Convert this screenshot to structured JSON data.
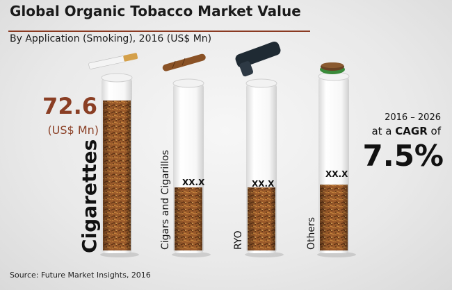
{
  "header": {
    "title": "Global Organic Tobacco Market Value",
    "subtitle": "By Application (Smoking), 2016 (US$ Mn)"
  },
  "footer": {
    "source": "Source: Future Market Insights, 2016"
  },
  "highlight": {
    "value": "72.6",
    "unit": "(US$ Mn)"
  },
  "cagr": {
    "years": "2016 – 2026",
    "prefix": "at a ",
    "keyword": "CAGR",
    "suffix": " of",
    "value": "7.5%"
  },
  "chart_data": {
    "type": "bar",
    "title": "Global Organic Tobacco Market Value",
    "subtitle": "By Application (Smoking), 2016 (US$ Mn)",
    "categories": [
      "Cigarettes",
      "Cigars and Cigarillos",
      "RYO",
      "Others"
    ],
    "value_labels": [
      "72.6",
      "XX.X",
      "XX.X",
      "XX.X"
    ],
    "values": [
      72.6,
      null,
      null,
      null
    ],
    "fill_fraction": [
      0.92,
      0.4,
      0.4,
      0.4
    ],
    "fill_color": "#9a5a2a",
    "tube_color": "#ffffff"
  }
}
